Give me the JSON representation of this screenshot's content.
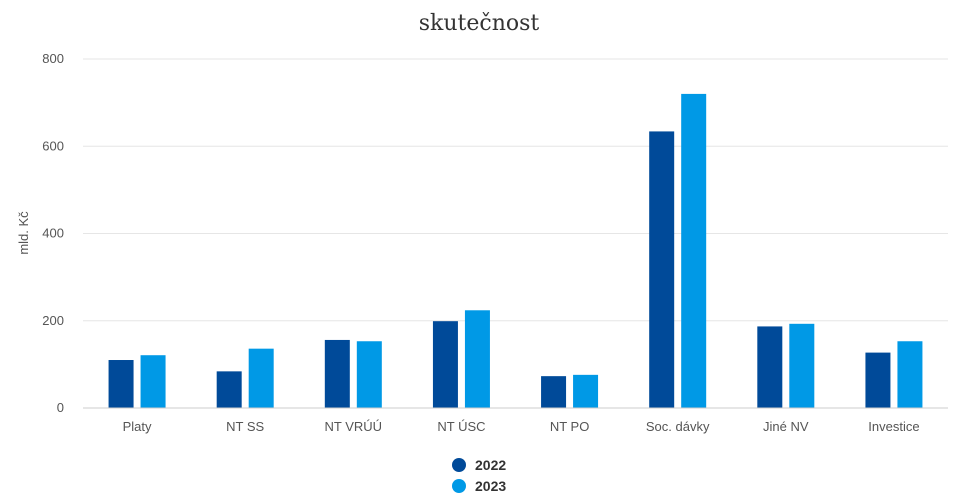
{
  "chart_data": {
    "type": "bar",
    "title": "skutečnost",
    "xlabel": "",
    "ylabel": "mld. Kč",
    "ylim": [
      0,
      800
    ],
    "yticks": [
      "0",
      "200",
      "400",
      "600",
      "800"
    ],
    "grid": true,
    "legend_position": "bottom",
    "categories": [
      "Platy",
      "NT SS",
      "NT VRÚÚ",
      "NT ÚSC",
      "NT PO",
      "Soc. dávky",
      "Jiné NV",
      "Investice"
    ],
    "series": [
      {
        "name": "2022",
        "color": "#004a99",
        "values": [
          110,
          84,
          156,
          199,
          73,
          634,
          187,
          127
        ]
      },
      {
        "name": "2023",
        "color": "#0099e6",
        "values": [
          121,
          136,
          153,
          224,
          76,
          720,
          193,
          153
        ]
      }
    ]
  }
}
